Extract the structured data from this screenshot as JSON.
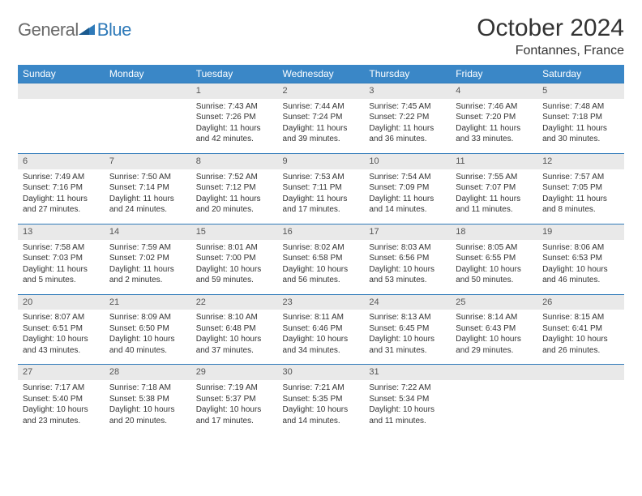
{
  "brand": {
    "word1": "General",
    "word2": "Blue"
  },
  "title": "October 2024",
  "location": "Fontannes, France",
  "colors": {
    "header_bg": "#3a87c7",
    "header_text": "#ffffff",
    "daynum_bg": "#e9e9e9",
    "row_border": "#2f7ab9",
    "logo_gray": "#6a6a6a",
    "logo_blue": "#2f7ab9",
    "body_text": "#333333"
  },
  "weekdays": [
    "Sunday",
    "Monday",
    "Tuesday",
    "Wednesday",
    "Thursday",
    "Friday",
    "Saturday"
  ],
  "weeks": [
    [
      null,
      null,
      {
        "n": "1",
        "sr": "Sunrise: 7:43 AM",
        "ss": "Sunset: 7:26 PM",
        "d1": "Daylight: 11 hours",
        "d2": "and 42 minutes."
      },
      {
        "n": "2",
        "sr": "Sunrise: 7:44 AM",
        "ss": "Sunset: 7:24 PM",
        "d1": "Daylight: 11 hours",
        "d2": "and 39 minutes."
      },
      {
        "n": "3",
        "sr": "Sunrise: 7:45 AM",
        "ss": "Sunset: 7:22 PM",
        "d1": "Daylight: 11 hours",
        "d2": "and 36 minutes."
      },
      {
        "n": "4",
        "sr": "Sunrise: 7:46 AM",
        "ss": "Sunset: 7:20 PM",
        "d1": "Daylight: 11 hours",
        "d2": "and 33 minutes."
      },
      {
        "n": "5",
        "sr": "Sunrise: 7:48 AM",
        "ss": "Sunset: 7:18 PM",
        "d1": "Daylight: 11 hours",
        "d2": "and 30 minutes."
      }
    ],
    [
      {
        "n": "6",
        "sr": "Sunrise: 7:49 AM",
        "ss": "Sunset: 7:16 PM",
        "d1": "Daylight: 11 hours",
        "d2": "and 27 minutes."
      },
      {
        "n": "7",
        "sr": "Sunrise: 7:50 AM",
        "ss": "Sunset: 7:14 PM",
        "d1": "Daylight: 11 hours",
        "d2": "and 24 minutes."
      },
      {
        "n": "8",
        "sr": "Sunrise: 7:52 AM",
        "ss": "Sunset: 7:12 PM",
        "d1": "Daylight: 11 hours",
        "d2": "and 20 minutes."
      },
      {
        "n": "9",
        "sr": "Sunrise: 7:53 AM",
        "ss": "Sunset: 7:11 PM",
        "d1": "Daylight: 11 hours",
        "d2": "and 17 minutes."
      },
      {
        "n": "10",
        "sr": "Sunrise: 7:54 AM",
        "ss": "Sunset: 7:09 PM",
        "d1": "Daylight: 11 hours",
        "d2": "and 14 minutes."
      },
      {
        "n": "11",
        "sr": "Sunrise: 7:55 AM",
        "ss": "Sunset: 7:07 PM",
        "d1": "Daylight: 11 hours",
        "d2": "and 11 minutes."
      },
      {
        "n": "12",
        "sr": "Sunrise: 7:57 AM",
        "ss": "Sunset: 7:05 PM",
        "d1": "Daylight: 11 hours",
        "d2": "and 8 minutes."
      }
    ],
    [
      {
        "n": "13",
        "sr": "Sunrise: 7:58 AM",
        "ss": "Sunset: 7:03 PM",
        "d1": "Daylight: 11 hours",
        "d2": "and 5 minutes."
      },
      {
        "n": "14",
        "sr": "Sunrise: 7:59 AM",
        "ss": "Sunset: 7:02 PM",
        "d1": "Daylight: 11 hours",
        "d2": "and 2 minutes."
      },
      {
        "n": "15",
        "sr": "Sunrise: 8:01 AM",
        "ss": "Sunset: 7:00 PM",
        "d1": "Daylight: 10 hours",
        "d2": "and 59 minutes."
      },
      {
        "n": "16",
        "sr": "Sunrise: 8:02 AM",
        "ss": "Sunset: 6:58 PM",
        "d1": "Daylight: 10 hours",
        "d2": "and 56 minutes."
      },
      {
        "n": "17",
        "sr": "Sunrise: 8:03 AM",
        "ss": "Sunset: 6:56 PM",
        "d1": "Daylight: 10 hours",
        "d2": "and 53 minutes."
      },
      {
        "n": "18",
        "sr": "Sunrise: 8:05 AM",
        "ss": "Sunset: 6:55 PM",
        "d1": "Daylight: 10 hours",
        "d2": "and 50 minutes."
      },
      {
        "n": "19",
        "sr": "Sunrise: 8:06 AM",
        "ss": "Sunset: 6:53 PM",
        "d1": "Daylight: 10 hours",
        "d2": "and 46 minutes."
      }
    ],
    [
      {
        "n": "20",
        "sr": "Sunrise: 8:07 AM",
        "ss": "Sunset: 6:51 PM",
        "d1": "Daylight: 10 hours",
        "d2": "and 43 minutes."
      },
      {
        "n": "21",
        "sr": "Sunrise: 8:09 AM",
        "ss": "Sunset: 6:50 PM",
        "d1": "Daylight: 10 hours",
        "d2": "and 40 minutes."
      },
      {
        "n": "22",
        "sr": "Sunrise: 8:10 AM",
        "ss": "Sunset: 6:48 PM",
        "d1": "Daylight: 10 hours",
        "d2": "and 37 minutes."
      },
      {
        "n": "23",
        "sr": "Sunrise: 8:11 AM",
        "ss": "Sunset: 6:46 PM",
        "d1": "Daylight: 10 hours",
        "d2": "and 34 minutes."
      },
      {
        "n": "24",
        "sr": "Sunrise: 8:13 AM",
        "ss": "Sunset: 6:45 PM",
        "d1": "Daylight: 10 hours",
        "d2": "and 31 minutes."
      },
      {
        "n": "25",
        "sr": "Sunrise: 8:14 AM",
        "ss": "Sunset: 6:43 PM",
        "d1": "Daylight: 10 hours",
        "d2": "and 29 minutes."
      },
      {
        "n": "26",
        "sr": "Sunrise: 8:15 AM",
        "ss": "Sunset: 6:41 PM",
        "d1": "Daylight: 10 hours",
        "d2": "and 26 minutes."
      }
    ],
    [
      {
        "n": "27",
        "sr": "Sunrise: 7:17 AM",
        "ss": "Sunset: 5:40 PM",
        "d1": "Daylight: 10 hours",
        "d2": "and 23 minutes."
      },
      {
        "n": "28",
        "sr": "Sunrise: 7:18 AM",
        "ss": "Sunset: 5:38 PM",
        "d1": "Daylight: 10 hours",
        "d2": "and 20 minutes."
      },
      {
        "n": "29",
        "sr": "Sunrise: 7:19 AM",
        "ss": "Sunset: 5:37 PM",
        "d1": "Daylight: 10 hours",
        "d2": "and 17 minutes."
      },
      {
        "n": "30",
        "sr": "Sunrise: 7:21 AM",
        "ss": "Sunset: 5:35 PM",
        "d1": "Daylight: 10 hours",
        "d2": "and 14 minutes."
      },
      {
        "n": "31",
        "sr": "Sunrise: 7:22 AM",
        "ss": "Sunset: 5:34 PM",
        "d1": "Daylight: 10 hours",
        "d2": "and 11 minutes."
      },
      null,
      null
    ]
  ]
}
